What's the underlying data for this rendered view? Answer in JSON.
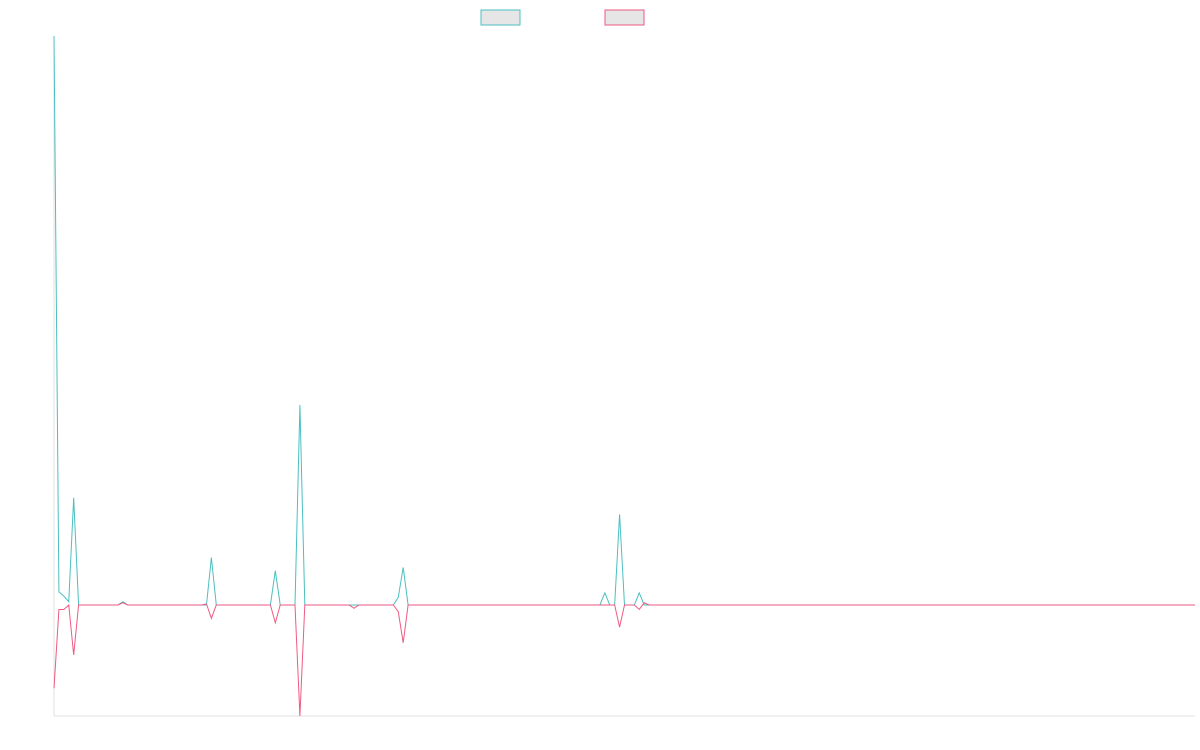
{
  "chart_data": {
    "type": "line",
    "title": "",
    "xlabel": "",
    "ylabel": "",
    "grid": false,
    "legend_position": "top-center",
    "colors": {
      "series_a": "#4bbfc1",
      "series_b": "#ee5a82",
      "legend_fill": "#e6e6e6",
      "axis": "#e0e0e0"
    },
    "ylim": [
      -100,
      515
    ],
    "x_count": 233,
    "series": [
      {
        "name": "",
        "points": [
          [
            0,
            515
          ],
          [
            1,
            12
          ],
          [
            2,
            8
          ],
          [
            3,
            3
          ],
          [
            4,
            97
          ],
          [
            5,
            0
          ],
          [
            13,
            0
          ],
          [
            14,
            3
          ],
          [
            15,
            0
          ],
          [
            31,
            0
          ],
          [
            32,
            43
          ],
          [
            33,
            0
          ],
          [
            44,
            0
          ],
          [
            45,
            31
          ],
          [
            46,
            0
          ],
          [
            49,
            0
          ],
          [
            50,
            181
          ],
          [
            51,
            0
          ],
          [
            69,
            0
          ],
          [
            70,
            7
          ],
          [
            71,
            34
          ],
          [
            72,
            0
          ],
          [
            111,
            0
          ],
          [
            112,
            11
          ],
          [
            113,
            0
          ],
          [
            114,
            0
          ],
          [
            115,
            82
          ],
          [
            116,
            0
          ],
          [
            118,
            0
          ],
          [
            119,
            11
          ],
          [
            120,
            0
          ],
          [
            232,
            0
          ]
        ]
      },
      {
        "name": "",
        "points": [
          [
            0,
            -75
          ],
          [
            1,
            -4
          ],
          [
            2,
            -4
          ],
          [
            3,
            0
          ],
          [
            4,
            -45
          ],
          [
            5,
            0
          ],
          [
            13,
            0
          ],
          [
            14,
            2
          ],
          [
            15,
            0
          ],
          [
            30,
            0
          ],
          [
            31,
            1
          ],
          [
            32,
            -12
          ],
          [
            33,
            0
          ],
          [
            44,
            0
          ],
          [
            45,
            -16
          ],
          [
            46,
            0
          ],
          [
            49,
            0
          ],
          [
            50,
            -100
          ],
          [
            51,
            0
          ],
          [
            60,
            0
          ],
          [
            61,
            -3
          ],
          [
            62,
            0
          ],
          [
            69,
            0
          ],
          [
            70,
            -6
          ],
          [
            71,
            -34
          ],
          [
            72,
            0
          ],
          [
            114,
            0
          ],
          [
            115,
            -20
          ],
          [
            116,
            0
          ],
          [
            118,
            0
          ],
          [
            119,
            -4
          ],
          [
            120,
            2
          ],
          [
            121,
            0
          ],
          [
            232,
            0
          ]
        ]
      }
    ]
  }
}
